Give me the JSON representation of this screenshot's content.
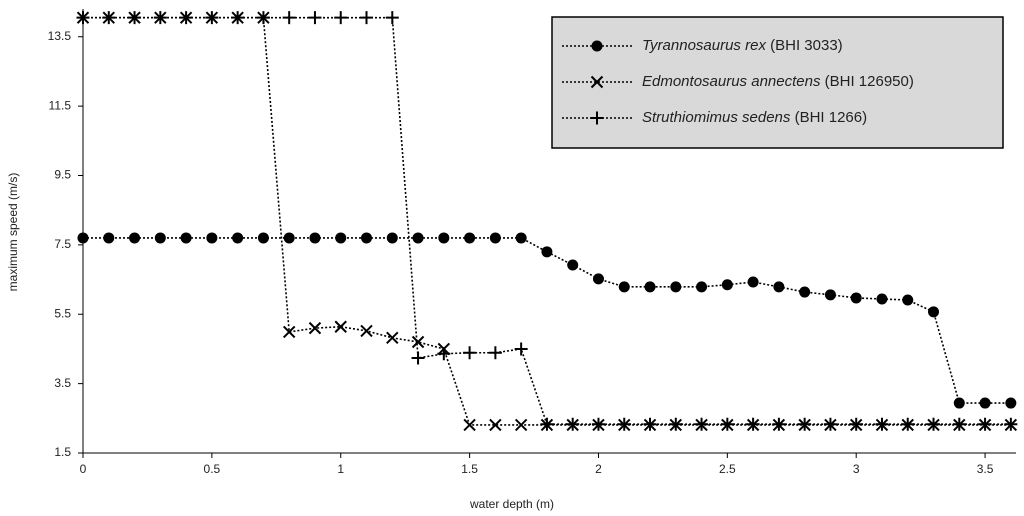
{
  "chart_data": {
    "type": "line",
    "x_label": "water depth (m)",
    "y_label": "maximum speed (m/s)",
    "x": [
      0,
      0.1,
      0.2,
      0.3,
      0.4,
      0.5,
      0.6,
      0.7,
      0.8,
      0.9,
      1.0,
      1.1,
      1.2,
      1.3,
      1.4,
      1.5,
      1.6,
      1.7,
      1.8,
      1.9,
      2.0,
      2.1,
      2.2,
      2.3,
      2.4,
      2.5,
      2.6,
      2.7,
      2.8,
      2.9,
      3.0,
      3.1,
      3.2,
      3.3,
      3.4,
      3.5,
      3.6
    ],
    "series": [
      {
        "name": "Tyrannosaurus rex (BHI 3033)",
        "color": "#000000",
        "marker": "circle",
        "values": [
          7.7,
          7.7,
          7.7,
          7.7,
          7.7,
          7.7,
          7.7,
          7.7,
          7.7,
          7.7,
          7.7,
          7.7,
          7.7,
          7.7,
          7.7,
          7.7,
          7.7,
          7.7,
          7.3,
          6.92,
          6.52,
          6.29,
          6.29,
          6.29,
          6.29,
          6.35,
          6.43,
          6.29,
          6.14,
          6.06,
          5.97,
          5.94,
          5.91,
          5.57,
          2.94,
          2.94,
          2.94
        ]
      },
      {
        "name": "Edmontosaurus annectens (BHI 126950)",
        "color": "#000000",
        "marker": "x",
        "values": [
          14.05,
          14.05,
          14.05,
          14.05,
          14.05,
          14.05,
          14.05,
          14.05,
          4.99,
          5.1,
          5.14,
          5.02,
          4.82,
          4.7,
          4.5,
          2.31,
          2.31,
          2.31,
          2.31,
          2.31,
          2.31,
          2.31,
          2.31,
          2.31,
          2.31,
          2.31,
          2.31,
          2.31,
          2.31,
          2.31,
          2.31,
          2.31,
          2.31,
          2.31,
          2.31,
          2.31,
          2.31
        ]
      },
      {
        "name": "Struthiomimus sedens (BHI 1266)",
        "color": "#000000",
        "marker": "plus",
        "values": [
          14.05,
          14.05,
          14.05,
          14.05,
          14.05,
          14.05,
          14.05,
          14.05,
          14.05,
          14.05,
          14.05,
          14.05,
          14.05,
          4.24,
          4.36,
          4.39,
          4.39,
          4.5,
          2.33,
          2.33,
          2.33,
          2.33,
          2.33,
          2.33,
          2.33,
          2.33,
          2.33,
          2.33,
          2.33,
          2.33,
          2.33,
          2.33,
          2.33,
          2.33,
          2.33,
          2.33,
          2.33
        ]
      }
    ],
    "xlim": [
      0,
      3.62
    ],
    "xticks": [
      0,
      0.5,
      1,
      1.5,
      2,
      2.5,
      3,
      3.5
    ],
    "ylim": [
      1.5,
      14.3
    ],
    "yticks": [
      1.5,
      3.5,
      5.5,
      7.5,
      9.5,
      11.5,
      13.5
    ],
    "grid": false,
    "legend": "upper right"
  }
}
